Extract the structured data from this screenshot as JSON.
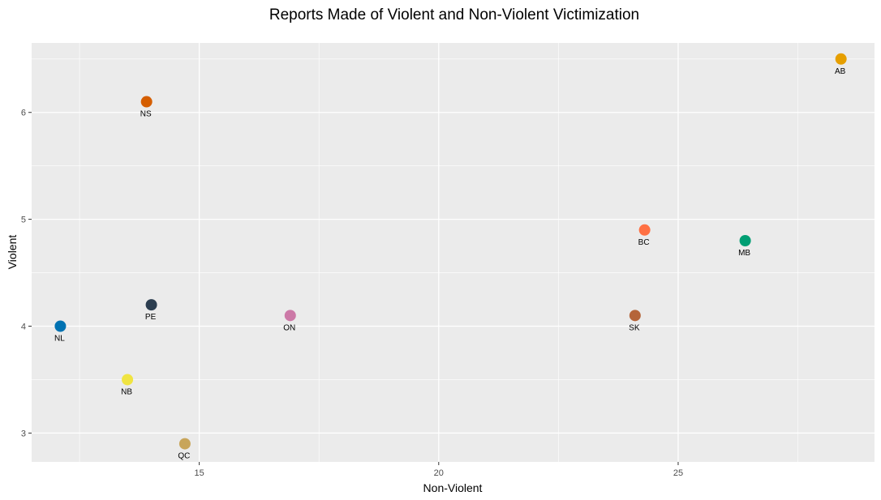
{
  "chart_data": {
    "type": "scatter",
    "title": "Reports Made of Violent and Non-Violent Victimization",
    "xlabel": "Non-Violent",
    "ylabel": "Violent",
    "xlim": [
      11.5,
      29.1
    ],
    "ylim": [
      2.73,
      6.65
    ],
    "xticks": [
      15,
      20,
      25
    ],
    "yticks": [
      3,
      4,
      5,
      6
    ],
    "xticks_minor": [
      12.5,
      17.5,
      22.5,
      27.5
    ],
    "yticks_minor": [
      3.5,
      4.5,
      5.5,
      6.5
    ],
    "grid": true,
    "legend": "none",
    "background_color": "#ebebeb",
    "grid_color": "#ffffff",
    "points": [
      {
        "label": "AB",
        "x": 28.4,
        "y": 6.5,
        "color": "#E69F00"
      },
      {
        "label": "NS",
        "x": 13.9,
        "y": 6.1,
        "color": "#D55E00"
      },
      {
        "label": "BC",
        "x": 24.3,
        "y": 4.9,
        "color": "#FF7043"
      },
      {
        "label": "MB",
        "x": 26.4,
        "y": 4.8,
        "color": "#009E73"
      },
      {
        "label": "PE",
        "x": 14.0,
        "y": 4.2,
        "color": "#2C3E50"
      },
      {
        "label": "ON",
        "x": 16.9,
        "y": 4.1,
        "color": "#CC79A7"
      },
      {
        "label": "SK",
        "x": 24.1,
        "y": 4.1,
        "color": "#B5653A"
      },
      {
        "label": "NL",
        "x": 12.1,
        "y": 4.0,
        "color": "#0072B2"
      },
      {
        "label": "NB",
        "x": 13.5,
        "y": 3.5,
        "color": "#F0E442"
      },
      {
        "label": "QC",
        "x": 14.7,
        "y": 2.9,
        "color": "#C8A55A"
      }
    ]
  }
}
